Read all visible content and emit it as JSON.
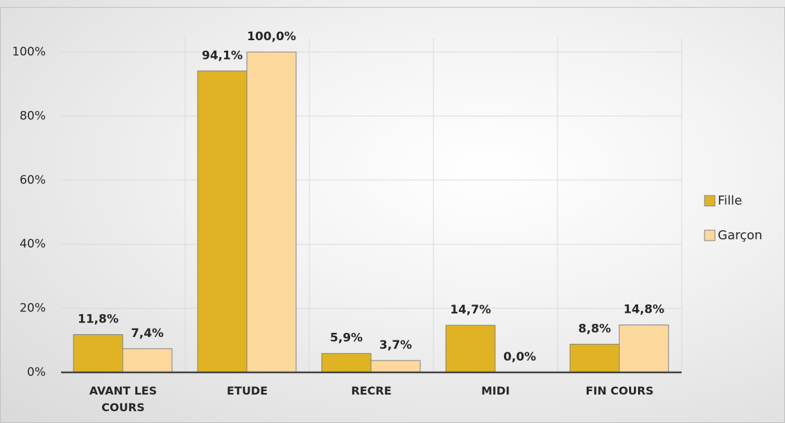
{
  "chart_data": {
    "type": "bar",
    "categories": [
      "AVANT LES COURS",
      "ETUDE",
      "RECRE",
      "MIDI",
      "FIN COURS"
    ],
    "series": [
      {
        "name": "Fille",
        "color": "#E0B325",
        "values": [
          11.8,
          94.1,
          5.9,
          14.7,
          8.8
        ],
        "value_labels": [
          "11,8%",
          "94,1%",
          "5,9%",
          "14,7%",
          "8,8%"
        ]
      },
      {
        "name": "Garçon",
        "color": "#FDD89D",
        "values": [
          7.4,
          100,
          3.7,
          0,
          14.8
        ],
        "value_labels": [
          "7,4%",
          "100,0%",
          "3,7%",
          "0,0%",
          "14,8%"
        ]
      }
    ],
    "ylim": [
      0,
      100
    ],
    "yticks": [
      {
        "value": 0,
        "label": "0%"
      },
      {
        "value": 20,
        "label": "20%"
      },
      {
        "value": 40,
        "label": "40%"
      },
      {
        "value": 60,
        "label": "60%"
      },
      {
        "value": 80,
        "label": "80%"
      },
      {
        "value": 100,
        "label": "100%"
      }
    ],
    "grid": true,
    "legend": "right"
  }
}
